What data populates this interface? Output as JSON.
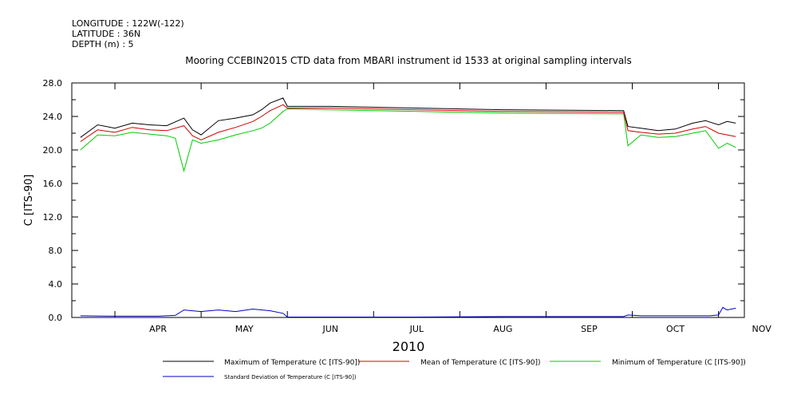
{
  "header": {
    "longitude": "LONGITUDE : 122W(-122)",
    "latitude": "LATITUDE : 36N",
    "depth": "DEPTH (m) : 5"
  },
  "chart_data": {
    "type": "line",
    "title": "Mooring CCEBIN2015 CTD data from MBARI instrument id 1533 at original sampling intervals",
    "xlabel": "2010",
    "ylabel": "C [ITS-90]",
    "ylim": [
      0,
      28
    ],
    "yticks": [
      0,
      4,
      8,
      12,
      16,
      20,
      24,
      28
    ],
    "ytick_labels": [
      "0.0",
      "4.0",
      "8.0",
      "12.0",
      "16.0",
      "20.0",
      "24.0",
      "28.0"
    ],
    "xlim": [
      0,
      7.8
    ],
    "x_unit": "months since 2010-03-15",
    "month_labels": [
      "APR",
      "MAY",
      "JUN",
      "JUL",
      "AUG",
      "SEP",
      "OCT",
      "NOV"
    ],
    "grid": false,
    "legend_position": "bottom",
    "series": [
      {
        "name": "Maximum of Temperature (C [ITS-90])",
        "color": "#000000",
        "points": [
          [
            0.1,
            21.5
          ],
          [
            0.3,
            23.0
          ],
          [
            0.5,
            22.6
          ],
          [
            0.7,
            23.2
          ],
          [
            0.9,
            23.0
          ],
          [
            1.1,
            22.9
          ],
          [
            1.3,
            23.8
          ],
          [
            1.4,
            22.4
          ],
          [
            1.5,
            21.8
          ],
          [
            1.7,
            23.5
          ],
          [
            1.9,
            23.8
          ],
          [
            2.1,
            24.2
          ],
          [
            2.2,
            24.8
          ],
          [
            2.3,
            25.6
          ],
          [
            2.45,
            26.2
          ],
          [
            2.5,
            25.2
          ],
          [
            3.0,
            25.2
          ],
          [
            4.0,
            25.0
          ],
          [
            5.0,
            24.8
          ],
          [
            6.4,
            24.7
          ],
          [
            6.45,
            22.8
          ],
          [
            6.6,
            22.6
          ],
          [
            6.8,
            22.3
          ],
          [
            7.0,
            22.5
          ],
          [
            7.2,
            23.2
          ],
          [
            7.35,
            23.5
          ],
          [
            7.5,
            23.0
          ],
          [
            7.6,
            23.4
          ],
          [
            7.7,
            23.2
          ]
        ]
      },
      {
        "name": "Mean of Temperature (C [ITS-90])",
        "color": "#cc0000",
        "points": [
          [
            0.1,
            21.0
          ],
          [
            0.3,
            22.4
          ],
          [
            0.5,
            22.1
          ],
          [
            0.7,
            22.7
          ],
          [
            0.9,
            22.4
          ],
          [
            1.1,
            22.3
          ],
          [
            1.3,
            22.9
          ],
          [
            1.4,
            21.7
          ],
          [
            1.5,
            21.2
          ],
          [
            1.7,
            22.1
          ],
          [
            1.9,
            22.7
          ],
          [
            2.1,
            23.4
          ],
          [
            2.2,
            24.0
          ],
          [
            2.3,
            24.7
          ],
          [
            2.45,
            25.4
          ],
          [
            2.5,
            25.0
          ],
          [
            3.0,
            25.0
          ],
          [
            4.0,
            24.8
          ],
          [
            5.0,
            24.6
          ],
          [
            6.4,
            24.5
          ],
          [
            6.45,
            22.3
          ],
          [
            6.6,
            22.1
          ],
          [
            6.8,
            21.9
          ],
          [
            7.0,
            22.0
          ],
          [
            7.2,
            22.5
          ],
          [
            7.35,
            22.8
          ],
          [
            7.5,
            22.0
          ],
          [
            7.6,
            21.8
          ],
          [
            7.7,
            21.6
          ]
        ]
      },
      {
        "name": "Minimum of Temperature (C [ITS-90])",
        "color": "#00cc00",
        "points": [
          [
            0.1,
            20.0
          ],
          [
            0.3,
            21.8
          ],
          [
            0.5,
            21.7
          ],
          [
            0.7,
            22.1
          ],
          [
            0.9,
            21.9
          ],
          [
            1.1,
            21.7
          ],
          [
            1.2,
            21.4
          ],
          [
            1.3,
            17.5
          ],
          [
            1.4,
            21.2
          ],
          [
            1.5,
            20.8
          ],
          [
            1.7,
            21.2
          ],
          [
            1.9,
            21.8
          ],
          [
            2.1,
            22.3
          ],
          [
            2.2,
            22.6
          ],
          [
            2.3,
            23.2
          ],
          [
            2.45,
            24.6
          ],
          [
            2.5,
            24.9
          ],
          [
            3.0,
            24.8
          ],
          [
            4.0,
            24.6
          ],
          [
            5.0,
            24.4
          ],
          [
            6.4,
            24.3
          ],
          [
            6.45,
            20.5
          ],
          [
            6.6,
            21.8
          ],
          [
            6.8,
            21.5
          ],
          [
            7.0,
            21.6
          ],
          [
            7.2,
            22.0
          ],
          [
            7.35,
            22.3
          ],
          [
            7.5,
            20.2
          ],
          [
            7.6,
            20.8
          ],
          [
            7.7,
            20.3
          ]
        ]
      },
      {
        "name": "Standard Deviation of Temperature (C [ITS-90])",
        "color": "#0000cc",
        "points": [
          [
            0.1,
            0.2
          ],
          [
            0.5,
            0.15
          ],
          [
            1.0,
            0.15
          ],
          [
            1.2,
            0.25
          ],
          [
            1.3,
            0.9
          ],
          [
            1.5,
            0.7
          ],
          [
            1.7,
            0.9
          ],
          [
            1.9,
            0.7
          ],
          [
            2.1,
            1.0
          ],
          [
            2.3,
            0.8
          ],
          [
            2.45,
            0.5
          ],
          [
            2.5,
            0.05
          ],
          [
            4.0,
            0.05
          ],
          [
            5.0,
            0.1
          ],
          [
            6.4,
            0.1
          ],
          [
            6.45,
            0.3
          ],
          [
            6.6,
            0.2
          ],
          [
            7.0,
            0.2
          ],
          [
            7.4,
            0.2
          ],
          [
            7.5,
            0.3
          ],
          [
            7.55,
            1.2
          ],
          [
            7.6,
            0.9
          ],
          [
            7.7,
            1.1
          ]
        ]
      }
    ]
  }
}
